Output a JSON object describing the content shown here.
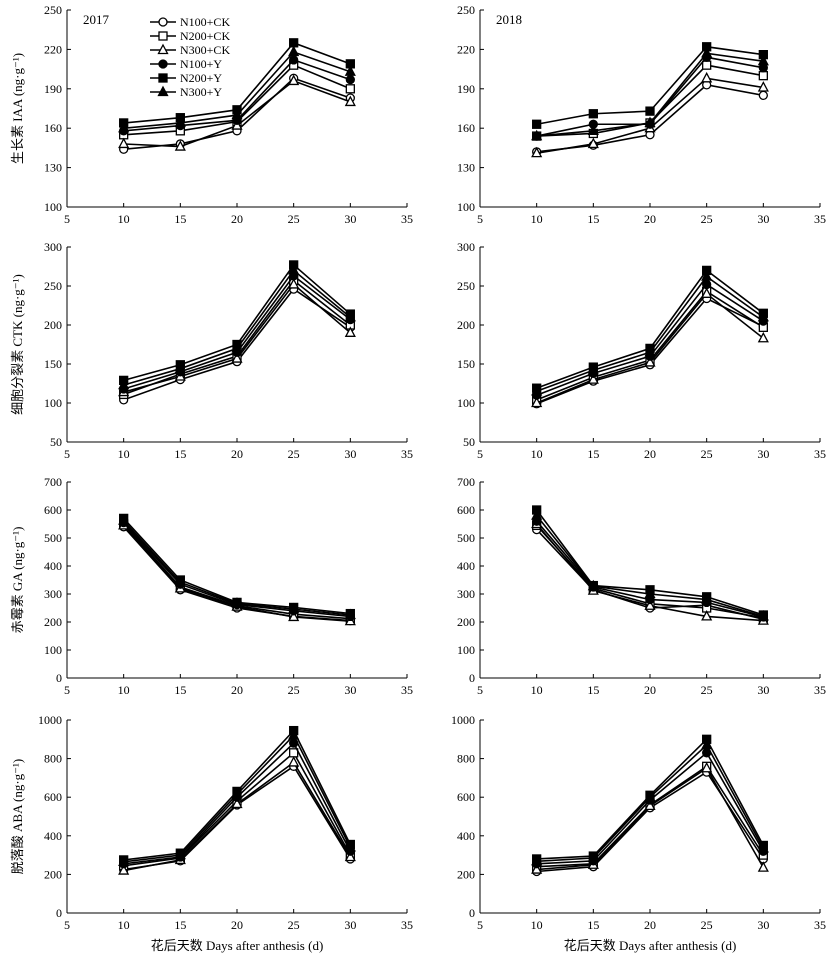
{
  "figure": {
    "xlabel": "花后天数 Days after anthesis (d)",
    "year_labels": [
      "2017",
      "2018"
    ]
  },
  "legend": [
    {
      "name": "N100+CK",
      "marker": "circle-open"
    },
    {
      "name": "N200+CK",
      "marker": "square-open"
    },
    {
      "name": "N300+CK",
      "marker": "triangle-open"
    },
    {
      "name": "N100+Y",
      "marker": "circle-filled"
    },
    {
      "name": "N200+Y",
      "marker": "square-filled"
    },
    {
      "name": "N300+Y",
      "marker": "triangle-filled"
    }
  ],
  "chart_data": [
    {
      "type": "line",
      "year": "2017",
      "ylabel": "生长素 IAA (ng·g⁻¹)",
      "x": [
        10,
        15,
        20,
        25,
        30
      ],
      "xlim": [
        5,
        35
      ],
      "xticks": [
        5,
        10,
        15,
        20,
        25,
        30,
        35
      ],
      "ylim": [
        100,
        250
      ],
      "yticks": [
        100,
        130,
        160,
        190,
        220,
        250
      ],
      "series": [
        {
          "name": "N100+CK",
          "values": [
            144,
            148,
            158,
            198,
            183
          ]
        },
        {
          "name": "N200+CK",
          "values": [
            155,
            158,
            165,
            208,
            190
          ]
        },
        {
          "name": "N300+CK",
          "values": [
            148,
            146,
            162,
            196,
            180
          ]
        },
        {
          "name": "N100+Y",
          "values": [
            158,
            162,
            166,
            212,
            197
          ]
        },
        {
          "name": "N200+Y",
          "values": [
            164,
            168,
            174,
            225,
            209
          ]
        },
        {
          "name": "N300+Y",
          "values": [
            160,
            164,
            170,
            218,
            203
          ]
        }
      ]
    },
    {
      "type": "line",
      "year": "2018",
      "ylabel": "",
      "x": [
        10,
        15,
        20,
        25,
        30
      ],
      "xlim": [
        5,
        35
      ],
      "xticks": [
        5,
        10,
        15,
        20,
        25,
        30,
        35
      ],
      "ylim": [
        100,
        250
      ],
      "yticks": [
        100,
        130,
        160,
        190,
        220,
        250
      ],
      "series": [
        {
          "name": "N100+CK",
          "values": [
            142,
            147,
            155,
            193,
            185
          ]
        },
        {
          "name": "N200+CK",
          "values": [
            154,
            156,
            164,
            208,
            200
          ]
        },
        {
          "name": "N300+CK",
          "values": [
            141,
            148,
            160,
            198,
            191
          ]
        },
        {
          "name": "N100+Y",
          "values": [
            154,
            163,
            163,
            214,
            206
          ]
        },
        {
          "name": "N200+Y",
          "values": [
            163,
            171,
            173,
            222,
            216
          ]
        },
        {
          "name": "N300+Y",
          "values": [
            154,
            158,
            164,
            217,
            211
          ]
        }
      ]
    },
    {
      "type": "line",
      "year": "2017",
      "ylabel": "细胞分裂素 CTK (ng·g⁻¹)",
      "x": [
        10,
        15,
        20,
        25,
        30
      ],
      "xlim": [
        5,
        35
      ],
      "xticks": [
        5,
        10,
        15,
        20,
        25,
        30,
        35
      ],
      "ylim": [
        50,
        300
      ],
      "yticks": [
        50,
        100,
        150,
        200,
        250,
        300
      ],
      "series": [
        {
          "name": "N100+CK",
          "values": [
            104,
            130,
            153,
            246,
            197
          ]
        },
        {
          "name": "N200+CK",
          "values": [
            111,
            137,
            160,
            257,
            200
          ]
        },
        {
          "name": "N300+CK",
          "values": [
            114,
            134,
            157,
            252,
            190
          ]
        },
        {
          "name": "N100+Y",
          "values": [
            118,
            140,
            165,
            263,
            207
          ]
        },
        {
          "name": "N200+Y",
          "values": [
            129,
            149,
            175,
            277,
            214
          ]
        },
        {
          "name": "N300+Y",
          "values": [
            123,
            144,
            170,
            270,
            210
          ]
        }
      ]
    },
    {
      "type": "line",
      "year": "2018",
      "ylabel": "",
      "x": [
        10,
        15,
        20,
        25,
        30
      ],
      "xlim": [
        5,
        35
      ],
      "xticks": [
        5,
        10,
        15,
        20,
        25,
        30,
        35
      ],
      "ylim": [
        50,
        300
      ],
      "yticks": [
        50,
        100,
        150,
        200,
        250,
        300
      ],
      "series": [
        {
          "name": "N100+CK",
          "values": [
            99,
            128,
            149,
            234,
            198
          ]
        },
        {
          "name": "N200+CK",
          "values": [
            104,
            133,
            155,
            243,
            197
          ]
        },
        {
          "name": "N300+CK",
          "values": [
            100,
            130,
            152,
            240,
            183
          ]
        },
        {
          "name": "N100+Y",
          "values": [
            110,
            138,
            160,
            252,
            205
          ]
        },
        {
          "name": "N200+Y",
          "values": [
            119,
            146,
            170,
            270,
            215
          ]
        },
        {
          "name": "N300+Y",
          "values": [
            115,
            142,
            165,
            262,
            210
          ]
        }
      ]
    },
    {
      "type": "line",
      "year": "2017",
      "ylabel": "赤霉素 GA (ng·g⁻¹)",
      "x": [
        10,
        15,
        20,
        25,
        30
      ],
      "xlim": [
        5,
        35
      ],
      "xticks": [
        5,
        10,
        15,
        20,
        25,
        30,
        35
      ],
      "ylim": [
        0,
        700
      ],
      "yticks": [
        0,
        100,
        200,
        300,
        400,
        500,
        600,
        700
      ],
      "series": [
        {
          "name": "N100+CK",
          "values": [
            540,
            315,
            250,
            220,
            205
          ]
        },
        {
          "name": "N200+CK",
          "values": [
            550,
            325,
            258,
            228,
            212
          ]
        },
        {
          "name": "N300+CK",
          "values": [
            545,
            320,
            255,
            218,
            203
          ]
        },
        {
          "name": "N100+Y",
          "values": [
            555,
            335,
            262,
            240,
            220
          ]
        },
        {
          "name": "N200+Y",
          "values": [
            570,
            350,
            270,
            252,
            230
          ]
        },
        {
          "name": "N300+Y",
          "values": [
            562,
            342,
            266,
            246,
            225
          ]
        }
      ]
    },
    {
      "type": "line",
      "year": "2018",
      "ylabel": "",
      "x": [
        10,
        15,
        20,
        25,
        30
      ],
      "xlim": [
        5,
        35
      ],
      "xticks": [
        5,
        10,
        15,
        20,
        25,
        30,
        35
      ],
      "ylim": [
        0,
        700
      ],
      "yticks": [
        0,
        100,
        200,
        300,
        400,
        500,
        600,
        700
      ],
      "series": [
        {
          "name": "N100+CK",
          "values": [
            530,
            315,
            250,
            260,
            210
          ]
        },
        {
          "name": "N200+CK",
          "values": [
            545,
            320,
            265,
            250,
            215
          ]
        },
        {
          "name": "N300+CK",
          "values": [
            550,
            312,
            258,
            220,
            205
          ]
        },
        {
          "name": "N100+Y",
          "values": [
            560,
            325,
            280,
            270,
            218
          ]
        },
        {
          "name": "N200+Y",
          "values": [
            600,
            330,
            315,
            290,
            225
          ]
        },
        {
          "name": "N300+Y",
          "values": [
            580,
            328,
            300,
            280,
            220
          ]
        }
      ]
    },
    {
      "type": "line",
      "year": "2017",
      "ylabel": "脱落酸 ABA (ng·g⁻¹)",
      "x": [
        10,
        15,
        20,
        25,
        30
      ],
      "xlim": [
        5,
        35
      ],
      "xticks": [
        5,
        10,
        15,
        20,
        25,
        30,
        35
      ],
      "ylim": [
        0,
        1000
      ],
      "yticks": [
        0,
        200,
        400,
        600,
        800,
        1000
      ],
      "series": [
        {
          "name": "N100+CK",
          "values": [
            225,
            270,
            560,
            760,
            280
          ]
        },
        {
          "name": "N200+CK",
          "values": [
            245,
            285,
            580,
            830,
            300
          ]
        },
        {
          "name": "N300+CK",
          "values": [
            220,
            275,
            565,
            780,
            290
          ]
        },
        {
          "name": "N100+Y",
          "values": [
            255,
            290,
            600,
            880,
            320
          ]
        },
        {
          "name": "N200+Y",
          "values": [
            275,
            310,
            630,
            945,
            355
          ]
        },
        {
          "name": "N300+Y",
          "values": [
            265,
            300,
            615,
            920,
            340
          ]
        }
      ]
    },
    {
      "type": "line",
      "year": "2018",
      "ylabel": "",
      "x": [
        10,
        15,
        20,
        25,
        30
      ],
      "xlim": [
        5,
        35
      ],
      "xticks": [
        5,
        10,
        15,
        20,
        25,
        30,
        35
      ],
      "ylim": [
        0,
        1000
      ],
      "yticks": [
        0,
        200,
        400,
        600,
        800,
        1000
      ],
      "series": [
        {
          "name": "N100+CK",
          "values": [
            215,
            240,
            545,
            730,
            280
          ]
        },
        {
          "name": "N200+CK",
          "values": [
            240,
            255,
            560,
            760,
            300
          ]
        },
        {
          "name": "N300+CK",
          "values": [
            225,
            250,
            555,
            750,
            235
          ]
        },
        {
          "name": "N100+Y",
          "values": [
            255,
            270,
            585,
            830,
            320
          ]
        },
        {
          "name": "N200+Y",
          "values": [
            280,
            295,
            610,
            900,
            350
          ]
        },
        {
          "name": "N300+Y",
          "values": [
            268,
            285,
            600,
            870,
            335
          ]
        }
      ]
    }
  ]
}
